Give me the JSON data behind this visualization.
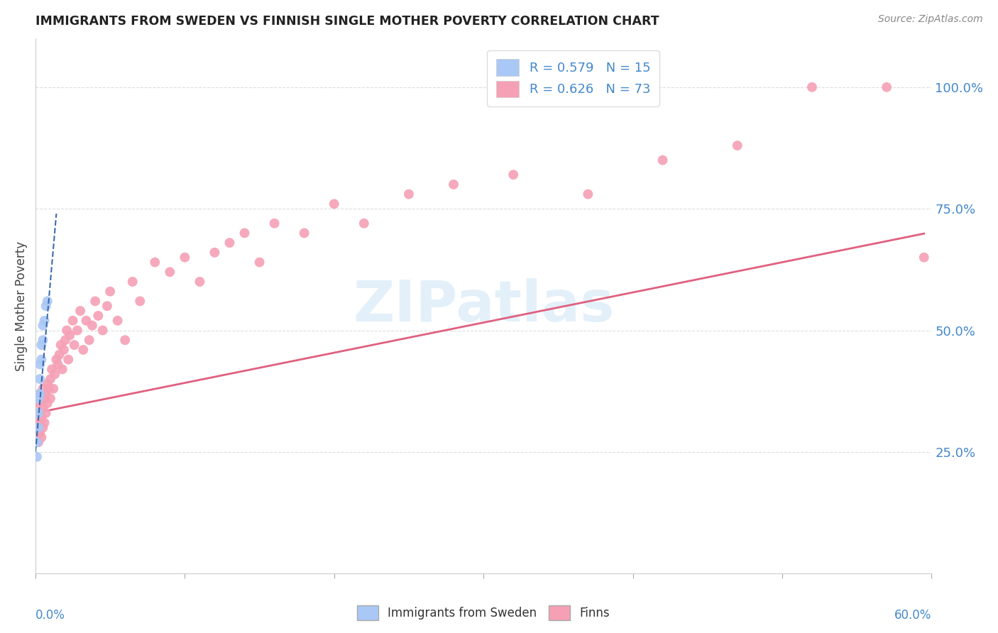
{
  "title": "IMMIGRANTS FROM SWEDEN VS FINNISH SINGLE MOTHER POVERTY CORRELATION CHART",
  "source": "Source: ZipAtlas.com",
  "ylabel": "Single Mother Poverty",
  "ytick_labels": [
    "25.0%",
    "50.0%",
    "75.0%",
    "100.0%"
  ],
  "ytick_values": [
    0.25,
    0.5,
    0.75,
    1.0
  ],
  "xlim": [
    0.0,
    0.6
  ],
  "ylim": [
    0.0,
    1.1
  ],
  "legend_label1": "R = 0.579   N = 15",
  "legend_label2": "R = 0.626   N = 73",
  "legend_bottom_label1": "Immigrants from Sweden",
  "legend_bottom_label2": "Finns",
  "blue_x": [
    0.001,
    0.001,
    0.002,
    0.002,
    0.002,
    0.003,
    0.003,
    0.003,
    0.004,
    0.004,
    0.005,
    0.005,
    0.006,
    0.007,
    0.008
  ],
  "blue_y": [
    0.24,
    0.27,
    0.3,
    0.33,
    0.36,
    0.37,
    0.4,
    0.43,
    0.44,
    0.47,
    0.48,
    0.51,
    0.52,
    0.55,
    0.56
  ],
  "pink_x": [
    0.001,
    0.001,
    0.002,
    0.002,
    0.002,
    0.003,
    0.003,
    0.003,
    0.004,
    0.004,
    0.005,
    0.005,
    0.005,
    0.006,
    0.006,
    0.007,
    0.007,
    0.008,
    0.008,
    0.009,
    0.01,
    0.01,
    0.011,
    0.012,
    0.013,
    0.014,
    0.015,
    0.016,
    0.017,
    0.018,
    0.019,
    0.02,
    0.021,
    0.022,
    0.023,
    0.025,
    0.026,
    0.028,
    0.03,
    0.032,
    0.034,
    0.036,
    0.038,
    0.04,
    0.042,
    0.045,
    0.048,
    0.05,
    0.055,
    0.06,
    0.065,
    0.07,
    0.08,
    0.09,
    0.1,
    0.11,
    0.12,
    0.13,
    0.14,
    0.15,
    0.16,
    0.18,
    0.2,
    0.22,
    0.25,
    0.28,
    0.32,
    0.37,
    0.42,
    0.47,
    0.52,
    0.57,
    0.595
  ],
  "pink_y": [
    0.3,
    0.33,
    0.27,
    0.31,
    0.35,
    0.29,
    0.33,
    0.37,
    0.28,
    0.32,
    0.3,
    0.34,
    0.38,
    0.31,
    0.36,
    0.33,
    0.37,
    0.35,
    0.39,
    0.38,
    0.36,
    0.4,
    0.42,
    0.38,
    0.41,
    0.44,
    0.43,
    0.45,
    0.47,
    0.42,
    0.46,
    0.48,
    0.5,
    0.44,
    0.49,
    0.52,
    0.47,
    0.5,
    0.54,
    0.46,
    0.52,
    0.48,
    0.51,
    0.56,
    0.53,
    0.5,
    0.55,
    0.58,
    0.52,
    0.48,
    0.6,
    0.56,
    0.64,
    0.62,
    0.65,
    0.6,
    0.66,
    0.68,
    0.7,
    0.64,
    0.72,
    0.7,
    0.76,
    0.72,
    0.78,
    0.8,
    0.82,
    0.78,
    0.85,
    0.88,
    1.0,
    1.0,
    0.65
  ],
  "blue_trend_x": [
    0.0,
    0.014
  ],
  "blue_trend_slope": 35.0,
  "blue_trend_intercept": 0.25,
  "pink_trend_x": [
    0.0,
    0.595
  ],
  "pink_trend_slope": 0.62,
  "pink_trend_intercept": 0.33,
  "blue_color": "#aac8f5",
  "blue_line_color": "#3a6ab0",
  "pink_color": "#f5a0b5",
  "pink_line_color": "#e06080",
  "watermark_text": "ZIPatlas",
  "background_color": "#ffffff",
  "grid_color": "#dddddd",
  "axis_label_color": "#4488cc",
  "title_color": "#222222",
  "source_color": "#888888"
}
